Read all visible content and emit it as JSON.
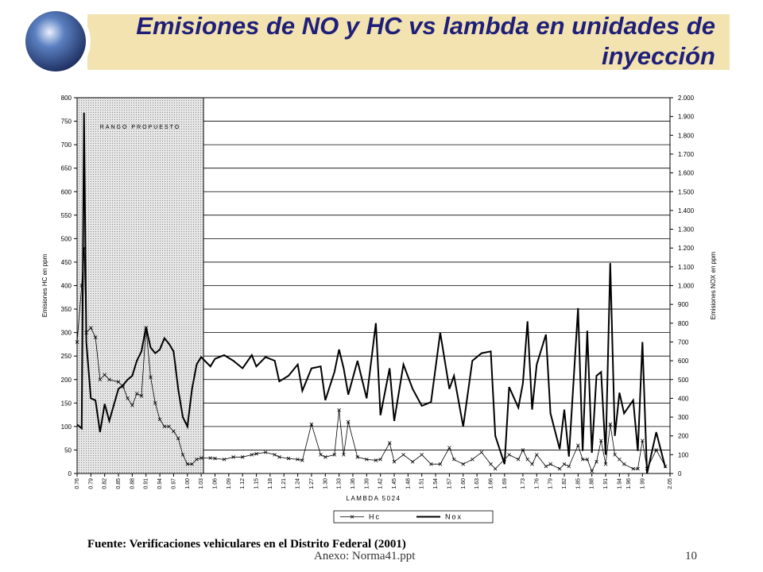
{
  "chart_data": {
    "type": "line",
    "title": "Emisiones de NO y HC vs lambda en unidades de inyección",
    "x_label": "LAMBDA 5024",
    "y_label": "Emisiones HC en ppm",
    "y2_label": "Emisiones NOX en ppm",
    "annotation": "RANGO PROPUESTO",
    "shaded_range": [
      0.76,
      1.035
    ],
    "x": [
      0.76,
      0.77,
      0.775,
      0.78,
      0.79,
      0.8,
      0.81,
      0.82,
      0.83,
      0.85,
      0.86,
      0.87,
      0.88,
      0.89,
      0.9,
      0.91,
      0.92,
      0.93,
      0.94,
      0.95,
      0.96,
      0.97,
      0.98,
      0.99,
      1.0,
      1.01,
      1.02,
      1.03,
      1.05,
      1.06,
      1.08,
      1.1,
      1.12,
      1.14,
      1.15,
      1.17,
      1.19,
      1.2,
      1.22,
      1.24,
      1.25,
      1.27,
      1.29,
      1.3,
      1.32,
      1.33,
      1.34,
      1.35,
      1.37,
      1.39,
      1.41,
      1.42,
      1.44,
      1.45,
      1.47,
      1.49,
      1.51,
      1.53,
      1.55,
      1.57,
      1.58,
      1.6,
      1.62,
      1.64,
      1.66,
      1.67,
      1.69,
      1.7,
      1.72,
      1.73,
      1.74,
      1.75,
      1.76,
      1.78,
      1.79,
      1.81,
      1.82,
      1.83,
      1.85,
      1.86,
      1.87,
      1.88,
      1.89,
      1.9,
      1.91,
      1.92,
      1.93,
      1.94,
      1.95,
      1.97,
      1.98,
      1.99,
      2.0,
      2.02,
      2.04
    ],
    "series": [
      {
        "name": "Hc",
        "color": "#000000",
        "axis": "y",
        "values": [
          280,
          400,
          480,
          300,
          310,
          290,
          200,
          210,
          200,
          195,
          185,
          160,
          145,
          170,
          165,
          310,
          205,
          150,
          115,
          100,
          100,
          90,
          75,
          40,
          20,
          20,
          30,
          33,
          33,
          32,
          30,
          35,
          35,
          40,
          42,
          45,
          40,
          35,
          32,
          30,
          28,
          105,
          40,
          35,
          40,
          135,
          40,
          110,
          35,
          30,
          28,
          30,
          65,
          25,
          40,
          25,
          40,
          20,
          20,
          55,
          30,
          20,
          30,
          45,
          20,
          10,
          30,
          40,
          30,
          50,
          30,
          20,
          40,
          15,
          20,
          10,
          20,
          15,
          60,
          30,
          30,
          5,
          25,
          70,
          20,
          105,
          40,
          30,
          20,
          10,
          10,
          70,
          10,
          50,
          15
        ]
      },
      {
        "name": "Nox",
        "color": "#000000",
        "axis": "y2",
        "values": [
          260,
          240,
          1920,
          700,
          400,
          390,
          220,
          370,
          280,
          450,
          470,
          500,
          520,
          600,
          650,
          780,
          670,
          640,
          660,
          720,
          690,
          650,
          450,
          300,
          250,
          450,
          580,
          620,
          570,
          610,
          630,
          600,
          560,
          630,
          570,
          620,
          600,
          490,
          520,
          580,
          440,
          560,
          570,
          390,
          540,
          660,
          560,
          420,
          600,
          400,
          800,
          310,
          560,
          280,
          580,
          450,
          360,
          380,
          750,
          450,
          520,
          250,
          600,
          640,
          650,
          200,
          50,
          460,
          350,
          480,
          810,
          340,
          580,
          740,
          320,
          130,
          340,
          90,
          880,
          120,
          760,
          110,
          520,
          540,
          100,
          1120,
          200,
          430,
          320,
          390,
          120,
          700,
          0,
          220,
          30
        ]
      }
    ],
    "xlim": [
      0.76,
      2.05
    ],
    "xticks": [
      0.76,
      0.79,
      0.82,
      0.85,
      0.88,
      0.91,
      0.94,
      0.97,
      {
        "value": 1.0,
        "label": "1.00"
      },
      1.03,
      1.06,
      1.09,
      1.12,
      1.15,
      1.18,
      1.21,
      1.24,
      1.27,
      {
        "value": 1.3,
        "label": "1.30"
      },
      1.33,
      1.36,
      1.39,
      1.42,
      1.45,
      1.48,
      1.51,
      1.54,
      1.57,
      {
        "value": 1.6,
        "label": "1.60"
      },
      1.63,
      1.66,
      1.69,
      1.73,
      1.76,
      1.79,
      1.82,
      1.85,
      1.88,
      1.91,
      1.94,
      1.96,
      1.99,
      2.05
    ],
    "ylim": [
      0,
      800
    ],
    "yticks": [
      0,
      50,
      100,
      150,
      200,
      250,
      300,
      350,
      400,
      450,
      500,
      550,
      600,
      650,
      700,
      750,
      800
    ],
    "y2lim": [
      0,
      2000
    ],
    "y2ticks": [
      {
        "value": 0,
        "label": "0"
      },
      {
        "value": 100,
        "label": "100"
      },
      {
        "value": 200,
        "label": "200"
      },
      {
        "value": 300,
        "label": "300"
      },
      {
        "value": 400,
        "label": "400"
      },
      {
        "value": 500,
        "label": "500"
      },
      {
        "value": 600,
        "label": "600"
      },
      {
        "value": 700,
        "label": "700"
      },
      {
        "value": 800,
        "label": "800"
      },
      {
        "value": 900,
        "label": "900"
      },
      {
        "value": 1000,
        "label": "1.000"
      },
      {
        "value": 1100,
        "label": "1.100"
      },
      {
        "value": 1200,
        "label": "1.200"
      },
      {
        "value": 1300,
        "label": "1.300"
      },
      {
        "value": 1400,
        "label": "1.400"
      },
      {
        "value": 1500,
        "label": "1.500"
      },
      {
        "value": 1600,
        "label": "1.600"
      },
      {
        "value": 1700,
        "label": "1.700"
      },
      {
        "value": 1800,
        "label": "1.800"
      },
      {
        "value": 1900,
        "label": "1.900"
      },
      {
        "value": 2000,
        "label": "2.000"
      }
    ],
    "grid": true,
    "legend": "bottom"
  },
  "source": "Fuente: Verificaciones vehiculares en el Distrito Federal (2001)",
  "footer": "Anexo: Norma41.ppt",
  "page_number": "10"
}
